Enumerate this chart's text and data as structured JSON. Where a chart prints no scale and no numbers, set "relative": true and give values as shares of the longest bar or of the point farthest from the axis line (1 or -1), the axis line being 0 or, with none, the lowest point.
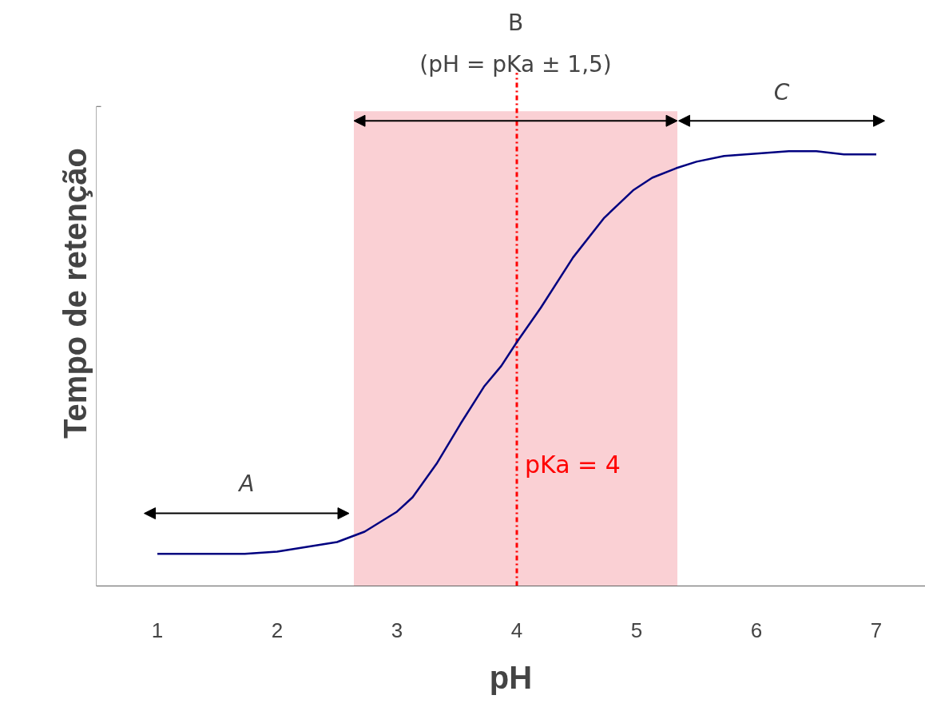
{
  "chart_data": {
    "type": "line",
    "relative": true,
    "xlabel": "pH",
    "ylabel": "Tempo de retenção",
    "x": [
      1,
      1.73,
      2,
      2.5,
      2.73,
      3,
      3.13,
      3.33,
      3.53,
      3.73,
      3.87,
      4,
      4.2,
      4.47,
      4.73,
      4.97,
      5.13,
      5.33,
      5.5,
      5.73,
      6.27,
      6.5,
      6.73,
      7
    ],
    "series": [
      {
        "color": "#000080",
        "values": [
          0.074,
          0.074,
          0.079,
          0.101,
          0.125,
          0.171,
          0.204,
          0.281,
          0.373,
          0.46,
          0.506,
          0.561,
          0.64,
          0.756,
          0.847,
          0.91,
          0.939,
          0.961,
          0.976,
          0.989,
          1.0,
          1.0,
          0.993,
          0.993
        ]
      }
    ],
    "xlim": [
      0.49,
      7.41
    ],
    "xticks": [
      1,
      2,
      3,
      4,
      5,
      6,
      7
    ],
    "grid": false,
    "marker": "none",
    "line_style": "solid",
    "annotations": [
      "A",
      "C"
    ],
    "ref_lines": [
      {
        "axis": "x",
        "value": 4,
        "label": "pKa = 4",
        "color": "#ff0000",
        "line_style": "dashdot"
      }
    ],
    "bands": [
      {
        "axis": "x",
        "from": 2.64,
        "to": 5.34,
        "label": "B\n(pH = pKa ± 1,5)",
        "color": "#f6a9b1"
      }
    ]
  }
}
